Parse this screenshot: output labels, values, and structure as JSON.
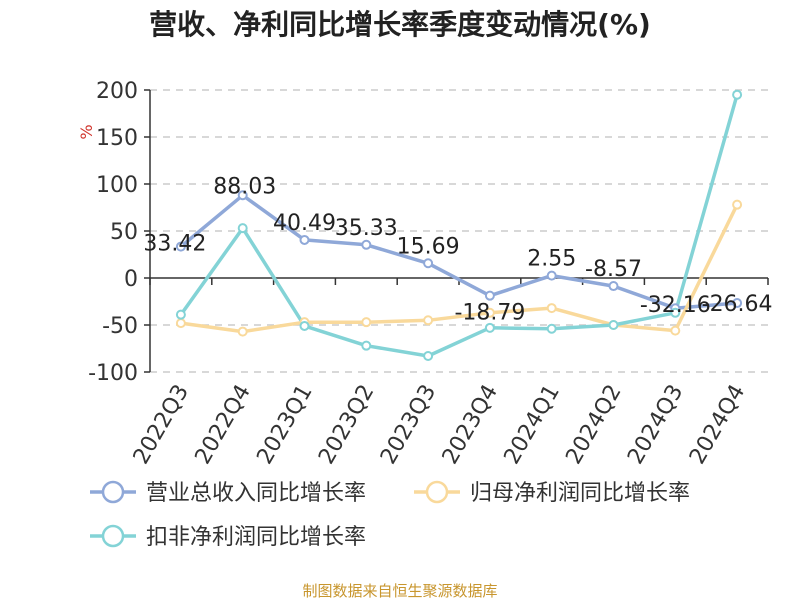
{
  "chart_data": {
    "type": "line",
    "title": "营收、净利同比增长率季度变动情况(%)",
    "ylabel": "%",
    "ylim": [
      -100,
      200
    ],
    "yticks": [
      200,
      150,
      100,
      50,
      0,
      -50,
      -100
    ],
    "grid": true,
    "legend_position": "bottom",
    "categories": [
      "2022Q3",
      "2022Q4",
      "2023Q1",
      "2023Q2",
      "2023Q3",
      "2023Q4",
      "2024Q1",
      "2024Q2",
      "2024Q3",
      "2024Q4"
    ],
    "series": [
      {
        "name": "营业总收入同比增长率",
        "color": "#8fa8d8",
        "values": [
          33.42,
          88.03,
          40.49,
          35.33,
          15.69,
          -18.79,
          2.55,
          -8.57,
          -32.16,
          -26.64
        ],
        "labels": [
          "33.42",
          "88.03",
          "40.49",
          "35.33",
          "15.69",
          "-18.79",
          "2.55",
          "-8.57",
          "-32.16",
          "-26.64"
        ]
      },
      {
        "name": "归母净利润同比增长率",
        "color": "#f9d99b",
        "values": [
          -48,
          -57,
          -47,
          -47,
          -45,
          -37,
          -32,
          -50,
          -56,
          78
        ]
      },
      {
        "name": "扣非净利润同比增长率",
        "color": "#83d3d6",
        "values": [
          -39,
          53,
          -51,
          -72,
          -83,
          -53,
          -54,
          -50,
          -37,
          195
        ]
      }
    ]
  },
  "source": "制图数据来自恒生聚源数据库"
}
